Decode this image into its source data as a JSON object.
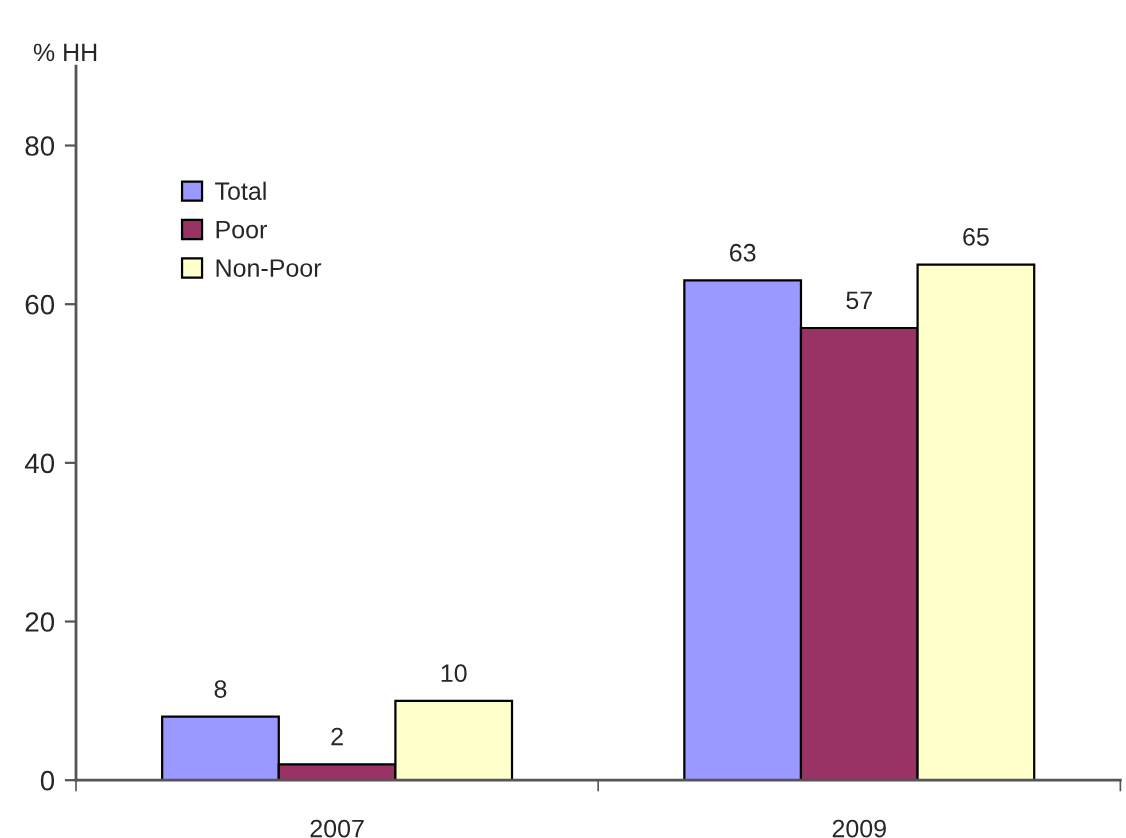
{
  "chart_data": {
    "type": "bar",
    "ylabel": "% HH",
    "categories": [
      "2007",
      "2009"
    ],
    "series": [
      {
        "name": "Total",
        "color": "#9999ff",
        "values": [
          8,
          63
        ]
      },
      {
        "name": "Poor",
        "color": "#993366",
        "values": [
          2,
          57
        ]
      },
      {
        "name": "Non-Poor",
        "color": "#ffffcc",
        "values": [
          10,
          65
        ]
      }
    ],
    "ylim": [
      0,
      90
    ],
    "yticks": [
      0,
      20,
      40,
      60,
      80
    ],
    "data_labels": true,
    "legend": "top left",
    "grid": false
  }
}
